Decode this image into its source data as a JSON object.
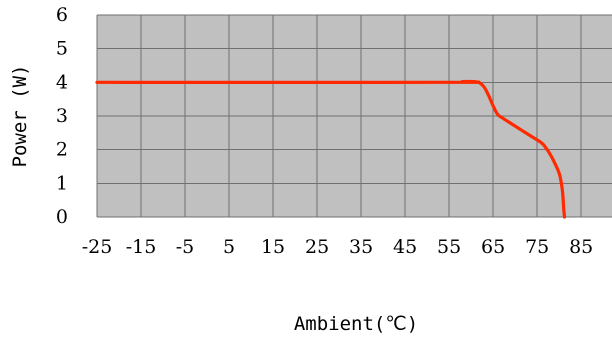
{
  "chart_data": {
    "type": "line",
    "title": "",
    "xlabel": "Ambient(℃)",
    "ylabel": "Power (W)",
    "xlim": [
      -25,
      92
    ],
    "ylim": [
      0,
      6
    ],
    "x_ticks": [
      -25,
      -15,
      -5,
      5,
      15,
      25,
      35,
      45,
      55,
      65,
      75,
      85
    ],
    "y_ticks": [
      0,
      1,
      2,
      3,
      4,
      5,
      6
    ],
    "grid": true,
    "legend": "none",
    "plot_background": "#c0c0c0",
    "grid_color": "#707070",
    "series": [
      {
        "color": "#ff2a00",
        "x": [
          -25,
          55,
          58,
          61,
          62,
          63,
          64,
          65,
          66,
          67,
          70,
          73,
          76,
          77,
          78,
          79,
          80,
          80.5,
          80.8,
          81,
          81.2
        ],
        "y": [
          4,
          4,
          4.02,
          4.02,
          3.98,
          3.85,
          3.6,
          3.3,
          3.05,
          2.95,
          2.7,
          2.45,
          2.2,
          2.05,
          1.85,
          1.6,
          1.3,
          1.0,
          0.7,
          0.3,
          0
        ]
      }
    ]
  }
}
